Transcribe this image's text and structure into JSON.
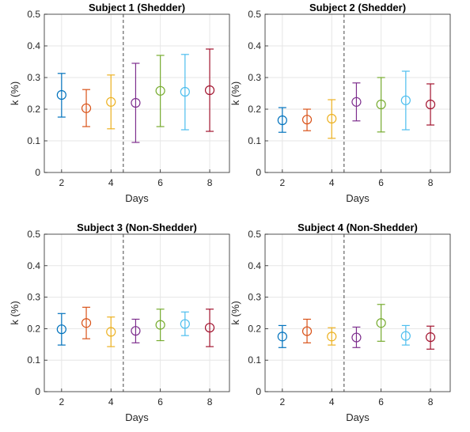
{
  "chart_data": [
    {
      "type": "errorbar",
      "title": "Subject 1 (Shedder)",
      "xlabel": "Days",
      "ylabel": "k (%)",
      "xlim": [
        1.3,
        8.8
      ],
      "ylim": [
        0,
        0.5
      ],
      "xticks": [
        "2",
        "4",
        "6",
        "8"
      ],
      "yticks": [
        "0",
        "0.1",
        "0.2",
        "0.3",
        "0.4",
        "0.5"
      ],
      "divider_x": 4.5,
      "grid": true,
      "points": [
        {
          "day": 2,
          "value": 0.245,
          "lower": 0.175,
          "upper": 0.313
        },
        {
          "day": 3,
          "value": 0.203,
          "lower": 0.145,
          "upper": 0.262
        },
        {
          "day": 4,
          "value": 0.223,
          "lower": 0.138,
          "upper": 0.308
        },
        {
          "day": 5,
          "value": 0.22,
          "lower": 0.095,
          "upper": 0.345
        },
        {
          "day": 6,
          "value": 0.258,
          "lower": 0.145,
          "upper": 0.37
        },
        {
          "day": 7,
          "value": 0.255,
          "lower": 0.135,
          "upper": 0.373
        },
        {
          "day": 8,
          "value": 0.26,
          "lower": 0.13,
          "upper": 0.39
        }
      ]
    },
    {
      "type": "errorbar",
      "title": "Subject 2 (Shedder)",
      "xlabel": "Days",
      "ylabel": "k (%)",
      "xlim": [
        1.3,
        8.8
      ],
      "ylim": [
        0,
        0.5
      ],
      "xticks": [
        "2",
        "4",
        "6",
        "8"
      ],
      "yticks": [
        "0",
        "0.1",
        "0.2",
        "0.3",
        "0.4",
        "0.5"
      ],
      "divider_x": 4.5,
      "grid": true,
      "points": [
        {
          "day": 2,
          "value": 0.165,
          "lower": 0.127,
          "upper": 0.205
        },
        {
          "day": 3,
          "value": 0.167,
          "lower": 0.132,
          "upper": 0.2
        },
        {
          "day": 4,
          "value": 0.17,
          "lower": 0.108,
          "upper": 0.23
        },
        {
          "day": 5,
          "value": 0.223,
          "lower": 0.163,
          "upper": 0.283
        },
        {
          "day": 6,
          "value": 0.215,
          "lower": 0.128,
          "upper": 0.3
        },
        {
          "day": 7,
          "value": 0.228,
          "lower": 0.135,
          "upper": 0.32
        },
        {
          "day": 8,
          "value": 0.215,
          "lower": 0.15,
          "upper": 0.28
        }
      ]
    },
    {
      "type": "errorbar",
      "title": "Subject 3 (Non-Shedder)",
      "xlabel": "Days",
      "ylabel": "k (%)",
      "xlim": [
        1.3,
        8.8
      ],
      "ylim": [
        0,
        0.5
      ],
      "xticks": [
        "2",
        "4",
        "6",
        "8"
      ],
      "yticks": [
        "0",
        "0.1",
        "0.2",
        "0.3",
        "0.4",
        "0.5"
      ],
      "divider_x": 4.5,
      "grid": true,
      "points": [
        {
          "day": 2,
          "value": 0.198,
          "lower": 0.148,
          "upper": 0.248
        },
        {
          "day": 3,
          "value": 0.218,
          "lower": 0.168,
          "upper": 0.268
        },
        {
          "day": 4,
          "value": 0.19,
          "lower": 0.143,
          "upper": 0.237
        },
        {
          "day": 5,
          "value": 0.193,
          "lower": 0.155,
          "upper": 0.23
        },
        {
          "day": 6,
          "value": 0.212,
          "lower": 0.162,
          "upper": 0.262
        },
        {
          "day": 7,
          "value": 0.215,
          "lower": 0.178,
          "upper": 0.253
        },
        {
          "day": 8,
          "value": 0.203,
          "lower": 0.143,
          "upper": 0.262
        }
      ]
    },
    {
      "type": "errorbar",
      "title": "Subject 4 (Non-Shedder)",
      "xlabel": "Days",
      "ylabel": "k (%)",
      "xlim": [
        1.3,
        8.8
      ],
      "ylim": [
        0,
        0.5
      ],
      "xticks": [
        "2",
        "4",
        "6",
        "8"
      ],
      "yticks": [
        "0",
        "0.1",
        "0.2",
        "0.3",
        "0.4",
        "0.5"
      ],
      "divider_x": 4.5,
      "grid": true,
      "points": [
        {
          "day": 2,
          "value": 0.175,
          "lower": 0.14,
          "upper": 0.21
        },
        {
          "day": 3,
          "value": 0.192,
          "lower": 0.155,
          "upper": 0.23
        },
        {
          "day": 4,
          "value": 0.175,
          "lower": 0.148,
          "upper": 0.203
        },
        {
          "day": 5,
          "value": 0.172,
          "lower": 0.14,
          "upper": 0.205
        },
        {
          "day": 6,
          "value": 0.218,
          "lower": 0.16,
          "upper": 0.277
        },
        {
          "day": 7,
          "value": 0.177,
          "lower": 0.148,
          "upper": 0.21
        },
        {
          "day": 8,
          "value": 0.173,
          "lower": 0.135,
          "upper": 0.208
        }
      ]
    }
  ],
  "colors": {
    "day2": "#0072BD",
    "day3": "#D95319",
    "day4": "#EDB120",
    "day5": "#7E2F8E",
    "day6": "#77AC30",
    "day7": "#4DBEEE",
    "day8": "#A2142F"
  }
}
